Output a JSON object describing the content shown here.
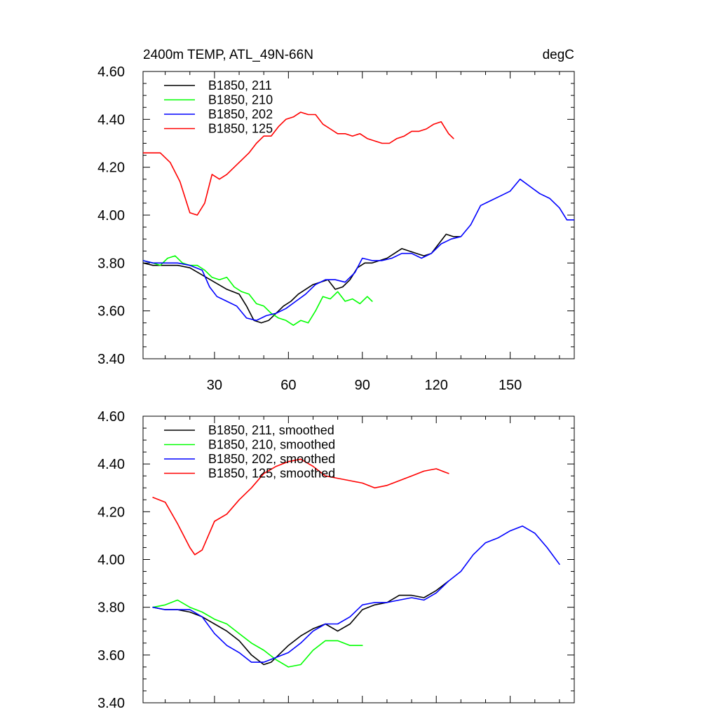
{
  "chart_data": [
    {
      "type": "line",
      "title": "2400m TEMP, ATL_49N-66N",
      "units": "degC",
      "xlabel": "",
      "ylabel": "",
      "xlim": [
        1,
        176
      ],
      "ylim": [
        3.4,
        4.6
      ],
      "xticks": [
        30,
        60,
        90,
        120,
        150
      ],
      "xtick_labels": [
        "30",
        "60",
        "90",
        "120",
        "150"
      ],
      "yticks": [
        3.4,
        3.6,
        3.8,
        4.0,
        4.2,
        4.4,
        4.6
      ],
      "ytick_labels": [
        "3.40",
        "3.60",
        "3.80",
        "4.00",
        "4.20",
        "4.40",
        "4.60"
      ],
      "grid": false,
      "legend_position": "top-left",
      "series": [
        {
          "name": "B1850, 211",
          "color": "#000000",
          "x": [
            1,
            5,
            10,
            15,
            20,
            25,
            30,
            35,
            40,
            43,
            46,
            49,
            52,
            55,
            58,
            61,
            64,
            67,
            70,
            73,
            76,
            79,
            82,
            85,
            88,
            91,
            94,
            97,
            100,
            103,
            106,
            109,
            112,
            115,
            118,
            121,
            124,
            127,
            130
          ],
          "values": [
            3.8,
            3.79,
            3.79,
            3.79,
            3.78,
            3.75,
            3.72,
            3.69,
            3.67,
            3.62,
            3.56,
            3.55,
            3.56,
            3.59,
            3.62,
            3.64,
            3.67,
            3.69,
            3.71,
            3.72,
            3.73,
            3.69,
            3.7,
            3.73,
            3.78,
            3.8,
            3.8,
            3.81,
            3.82,
            3.84,
            3.86,
            3.85,
            3.84,
            3.83,
            3.84,
            3.88,
            3.92,
            3.91,
            3.91
          ]
        },
        {
          "name": "B1850, 210",
          "color": "#00ff00",
          "x": [
            1,
            5,
            8,
            11,
            14,
            17,
            20,
            23,
            26,
            29,
            32,
            35,
            38,
            41,
            44,
            47,
            50,
            53,
            56,
            59,
            62,
            65,
            68,
            71,
            74,
            77,
            80,
            83,
            86,
            89,
            92,
            94
          ],
          "values": [
            3.81,
            3.8,
            3.79,
            3.82,
            3.83,
            3.8,
            3.79,
            3.79,
            3.77,
            3.74,
            3.73,
            3.74,
            3.7,
            3.68,
            3.67,
            3.63,
            3.62,
            3.59,
            3.57,
            3.56,
            3.54,
            3.56,
            3.55,
            3.6,
            3.66,
            3.65,
            3.68,
            3.64,
            3.65,
            3.63,
            3.66,
            3.64
          ]
        },
        {
          "name": "B1850, 202",
          "color": "#0000ff",
          "x": [
            1,
            5,
            10,
            15,
            20,
            25,
            28,
            31,
            35,
            39,
            43,
            47,
            51,
            55,
            59,
            63,
            67,
            71,
            75,
            79,
            83,
            87,
            90,
            94,
            98,
            102,
            106,
            110,
            114,
            118,
            122,
            126,
            130,
            134,
            138,
            142,
            146,
            150,
            154,
            158,
            162,
            166,
            170,
            173,
            176
          ],
          "values": [
            3.81,
            3.8,
            3.8,
            3.8,
            3.79,
            3.77,
            3.7,
            3.66,
            3.64,
            3.62,
            3.57,
            3.56,
            3.58,
            3.59,
            3.61,
            3.64,
            3.67,
            3.71,
            3.73,
            3.73,
            3.72,
            3.76,
            3.82,
            3.81,
            3.81,
            3.82,
            3.84,
            3.84,
            3.82,
            3.84,
            3.88,
            3.9,
            3.91,
            3.96,
            4.04,
            4.06,
            4.08,
            4.1,
            4.15,
            4.12,
            4.09,
            4.07,
            4.03,
            3.98,
            3.98
          ]
        },
        {
          "name": "B1850, 125",
          "color": "#ff0000",
          "x": [
            1,
            4,
            8,
            12,
            16,
            20,
            23,
            26,
            29,
            32,
            35,
            38,
            41,
            44,
            47,
            50,
            53,
            56,
            59,
            62,
            65,
            68,
            71,
            74,
            77,
            80,
            83,
            86,
            89,
            92,
            95,
            98,
            101,
            104,
            107,
            110,
            113,
            116,
            119,
            122,
            125,
            127
          ],
          "values": [
            4.26,
            4.26,
            4.26,
            4.22,
            4.14,
            4.01,
            4.0,
            4.05,
            4.17,
            4.15,
            4.17,
            4.2,
            4.23,
            4.26,
            4.3,
            4.33,
            4.33,
            4.37,
            4.4,
            4.41,
            4.43,
            4.42,
            4.42,
            4.38,
            4.36,
            4.34,
            4.34,
            4.33,
            4.34,
            4.32,
            4.31,
            4.3,
            4.3,
            4.32,
            4.33,
            4.35,
            4.35,
            4.36,
            4.38,
            4.39,
            4.34,
            4.32
          ]
        }
      ]
    },
    {
      "type": "line",
      "title": "",
      "xlabel": "",
      "ylabel": "",
      "xlim": [
        1,
        176
      ],
      "ylim": [
        3.4,
        4.6
      ],
      "xticks": [
        30,
        60,
        90,
        120,
        150
      ],
      "yticks": [
        3.4,
        3.6,
        3.8,
        4.0,
        4.2,
        4.4,
        4.6
      ],
      "ytick_labels": [
        "3.40",
        "3.60",
        "3.80",
        "4.00",
        "4.20",
        "4.40",
        "4.60"
      ],
      "grid": false,
      "legend_position": "top-left",
      "series": [
        {
          "name": "B1850, 211, smoothed",
          "color": "#000000",
          "x": [
            5,
            10,
            15,
            20,
            25,
            30,
            35,
            40,
            45,
            50,
            53,
            56,
            60,
            65,
            70,
            75,
            80,
            85,
            90,
            95,
            100,
            105,
            110,
            115,
            120,
            125
          ],
          "values": [
            3.8,
            3.79,
            3.79,
            3.78,
            3.76,
            3.73,
            3.7,
            3.66,
            3.6,
            3.56,
            3.57,
            3.6,
            3.64,
            3.68,
            3.71,
            3.73,
            3.7,
            3.73,
            3.79,
            3.81,
            3.82,
            3.85,
            3.85,
            3.84,
            3.87,
            3.91
          ]
        },
        {
          "name": "B1850, 210, smoothed",
          "color": "#00ff00",
          "x": [
            5,
            10,
            15,
            20,
            25,
            30,
            35,
            40,
            45,
            50,
            55,
            60,
            65,
            70,
            75,
            80,
            85,
            90
          ],
          "values": [
            3.8,
            3.81,
            3.83,
            3.8,
            3.78,
            3.75,
            3.73,
            3.69,
            3.65,
            3.62,
            3.58,
            3.55,
            3.56,
            3.62,
            3.66,
            3.66,
            3.64,
            3.64
          ]
        },
        {
          "name": "B1850, 202, smoothed",
          "color": "#0000ff",
          "x": [
            5,
            10,
            15,
            20,
            25,
            30,
            35,
            40,
            45,
            50,
            55,
            60,
            65,
            70,
            75,
            80,
            85,
            90,
            95,
            100,
            105,
            110,
            115,
            120,
            125,
            130,
            135,
            140,
            145,
            150,
            155,
            160,
            165,
            170
          ],
          "values": [
            3.8,
            3.79,
            3.79,
            3.79,
            3.76,
            3.69,
            3.64,
            3.61,
            3.57,
            3.57,
            3.59,
            3.61,
            3.65,
            3.7,
            3.73,
            3.73,
            3.76,
            3.81,
            3.82,
            3.82,
            3.83,
            3.84,
            3.83,
            3.86,
            3.91,
            3.95,
            4.02,
            4.07,
            4.09,
            4.12,
            4.14,
            4.11,
            4.05,
            3.98
          ]
        },
        {
          "name": "B1850, 125, smoothed",
          "color": "#ff0000",
          "x": [
            5,
            10,
            15,
            20,
            22,
            25,
            30,
            35,
            40,
            45,
            50,
            55,
            60,
            65,
            70,
            75,
            80,
            85,
            90,
            95,
            100,
            105,
            110,
            115,
            120,
            125
          ],
          "values": [
            4.26,
            4.24,
            4.15,
            4.05,
            4.02,
            4.04,
            4.16,
            4.19,
            4.25,
            4.3,
            4.36,
            4.39,
            4.41,
            4.42,
            4.39,
            4.35,
            4.34,
            4.33,
            4.32,
            4.3,
            4.31,
            4.33,
            4.35,
            4.37,
            4.38,
            4.36
          ]
        }
      ]
    }
  ]
}
